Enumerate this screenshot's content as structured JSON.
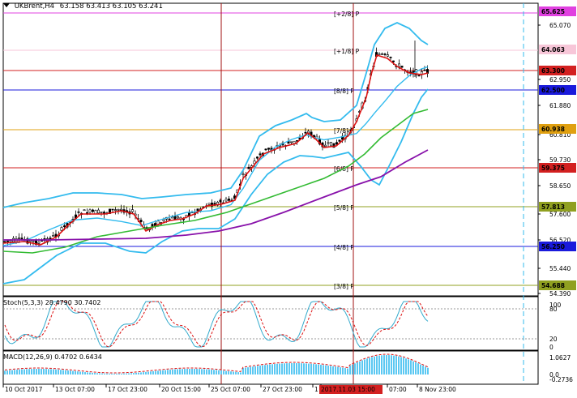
{
  "chart": {
    "symbol_header": "UKBrent,H4",
    "ohlc_header": "63.158 63.413 63.105 63.241"
  },
  "price_axis": {
    "ticks": [
      "65.070",
      "62.950",
      "61.880",
      "60.810",
      "59.730",
      "58.650",
      "57.600",
      "56.520",
      "55.440",
      "54.390"
    ],
    "tags": [
      {
        "text": "65.625",
        "color": "#e040e0"
      },
      {
        "text": "64.063",
        "color": "#f7c6d8"
      },
      {
        "text": "63.300",
        "color": "#d32020"
      },
      {
        "text": "62.500",
        "color": "#1a1adc"
      },
      {
        "text": "60.938",
        "color": "#e0a010"
      },
      {
        "text": "59.375",
        "color": "#d32020"
      },
      {
        "text": "57.813",
        "color": "#90a020"
      },
      {
        "text": "56.250",
        "color": "#1a1adc"
      },
      {
        "text": "54.688",
        "color": "#90a020"
      }
    ]
  },
  "murrey": [
    {
      "label": "[+2/8] P",
      "color": "#e040e0"
    },
    {
      "label": "[+1/8] P",
      "color": "#f7c6d8"
    },
    {
      "label": "[8/8] P",
      "color": "#1a1adc"
    },
    {
      "label": "[7/8] P",
      "color": "#e0a010"
    },
    {
      "label": "[6/8] P",
      "color": "#d32020"
    },
    {
      "label": "[5/8] P",
      "color": "#90a020"
    },
    {
      "label": "[4/8] P",
      "color": "#1a1adc"
    },
    {
      "label": "[3/8] P",
      "color": "#90a020"
    }
  ],
  "stoch": {
    "header": "Stoch(5,3,3) 28.4790 30.7402",
    "ticks": [
      "100",
      "80",
      "20",
      "0"
    ]
  },
  "macd": {
    "header": "MACD(12,26,9) 0.4702 0.6434",
    "ticks": [
      "1.0627",
      "0.0",
      "-0.2736"
    ]
  },
  "time_axis": {
    "labels": [
      "10 Oct 2017",
      "13 Oct 07:00",
      "17 Oct 23:00",
      "20 Oct 15:00",
      "25 Oct 07:00",
      "27 Oct 23:00",
      "1",
      "2017.11.03 15:00",
      "07:00",
      "8 Nov 23:00"
    ],
    "highlight": "2017.11.03 15:00",
    "highlight_color": "#d32020"
  },
  "colors": {
    "bollinger": "#33bbee",
    "ma_fast": "#dd1111",
    "ma_mid": "#33bb33",
    "ma_slow": "#8811aa",
    "stoch_main": "#33aacc",
    "stoch_signal": "#dd1111",
    "macd_hist": "#33bbee",
    "macd_signal": "#dd1111",
    "vline": "#a01010",
    "cursor": "#33bbee"
  }
}
